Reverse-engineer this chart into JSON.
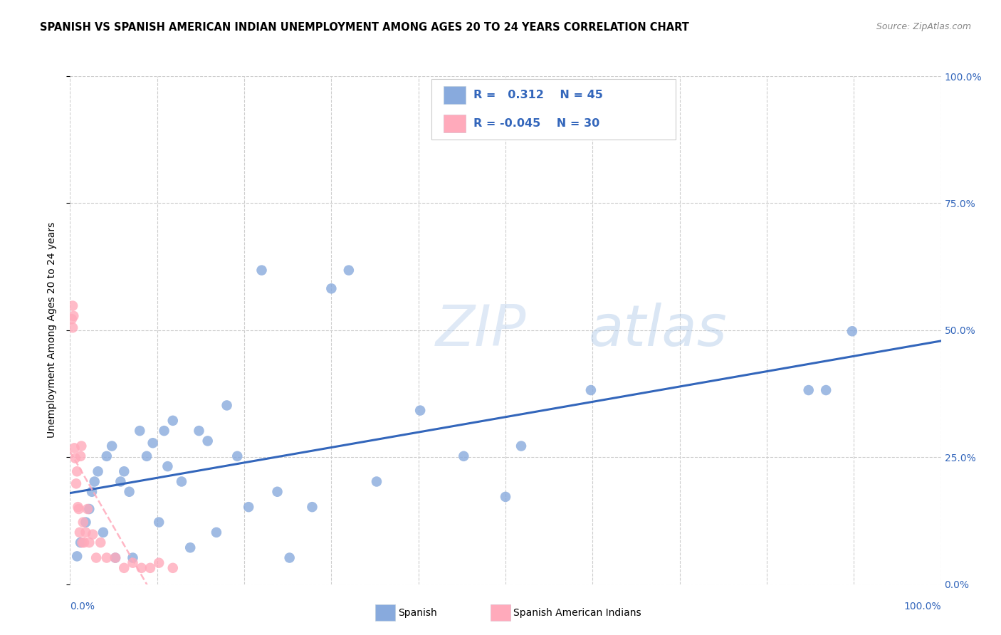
{
  "title": "SPANISH VS SPANISH AMERICAN INDIAN UNEMPLOYMENT AMONG AGES 20 TO 24 YEARS CORRELATION CHART",
  "source": "Source: ZipAtlas.com",
  "ylabel": "Unemployment Among Ages 20 to 24 years",
  "ytick_labels": [
    "0.0%",
    "25.0%",
    "50.0%",
    "75.0%",
    "100.0%"
  ],
  "ytick_values": [
    0.0,
    0.25,
    0.5,
    0.75,
    1.0
  ],
  "xtick_vals": [
    0.0,
    0.1,
    0.2,
    0.3,
    0.4,
    0.5,
    0.6,
    0.7,
    0.8,
    0.9,
    1.0
  ],
  "xlim": [
    0.0,
    1.0
  ],
  "ylim": [
    0.0,
    1.0
  ],
  "legend_label1": "Spanish",
  "legend_label2": "Spanish American Indians",
  "R1": 0.312,
  "N1": 45,
  "R2": -0.045,
  "N2": 30,
  "blue_color": "#88AADD",
  "pink_color": "#FFAABB",
  "line_blue": "#3366BB",
  "line_pink": "#FFAABB",
  "watermark_zip": "ZIP",
  "watermark_atlas": "atlas",
  "blue_points_x": [
    0.008,
    0.012,
    0.018,
    0.022,
    0.025,
    0.028,
    0.032,
    0.038,
    0.042,
    0.048,
    0.052,
    0.058,
    0.062,
    0.068,
    0.072,
    0.08,
    0.088,
    0.095,
    0.102,
    0.108,
    0.112,
    0.118,
    0.128,
    0.138,
    0.148,
    0.158,
    0.168,
    0.18,
    0.192,
    0.205,
    0.22,
    0.238,
    0.252,
    0.278,
    0.3,
    0.32,
    0.352,
    0.402,
    0.452,
    0.5,
    0.518,
    0.598,
    0.848,
    0.868,
    0.898
  ],
  "blue_points_y": [
    0.055,
    0.082,
    0.122,
    0.148,
    0.182,
    0.202,
    0.222,
    0.102,
    0.252,
    0.272,
    0.052,
    0.202,
    0.222,
    0.182,
    0.052,
    0.302,
    0.252,
    0.278,
    0.122,
    0.302,
    0.232,
    0.322,
    0.202,
    0.072,
    0.302,
    0.282,
    0.102,
    0.352,
    0.252,
    0.152,
    0.618,
    0.182,
    0.052,
    0.152,
    0.582,
    0.618,
    0.202,
    0.342,
    0.252,
    0.172,
    0.272,
    0.382,
    0.382,
    0.382,
    0.498
  ],
  "pink_points_x": [
    0.002,
    0.003,
    0.003,
    0.004,
    0.005,
    0.006,
    0.007,
    0.008,
    0.009,
    0.01,
    0.011,
    0.012,
    0.013,
    0.014,
    0.015,
    0.016,
    0.018,
    0.02,
    0.022,
    0.026,
    0.03,
    0.035,
    0.042,
    0.052,
    0.062,
    0.072,
    0.082,
    0.092,
    0.102,
    0.118
  ],
  "pink_points_y": [
    0.522,
    0.548,
    0.505,
    0.528,
    0.268,
    0.248,
    0.198,
    0.222,
    0.152,
    0.148,
    0.102,
    0.252,
    0.272,
    0.082,
    0.122,
    0.082,
    0.102,
    0.148,
    0.082,
    0.098,
    0.052,
    0.082,
    0.052,
    0.052,
    0.032,
    0.042,
    0.032,
    0.032,
    0.042,
    0.032
  ],
  "grid_color": "#CCCCCC",
  "bg_color": "#FFFFFF",
  "title_fontsize": 10.5,
  "source_fontsize": 9,
  "ylabel_fontsize": 10,
  "tick_fontsize": 10
}
